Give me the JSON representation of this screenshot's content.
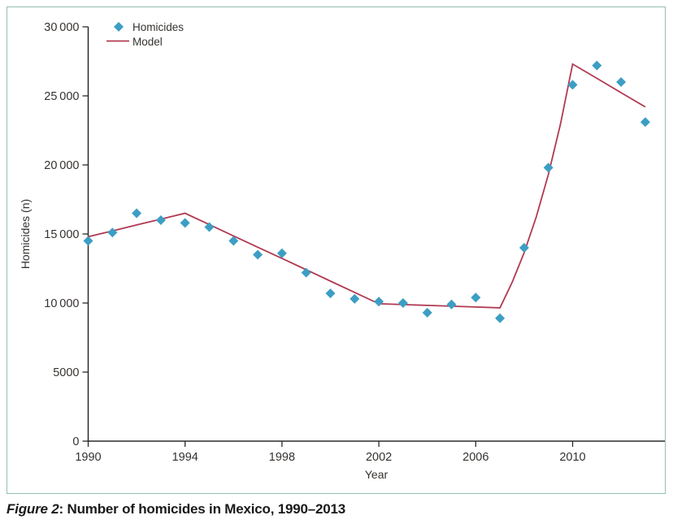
{
  "figure": {
    "caption_prefix": "Figure 2",
    "caption_rest": ": Number of homicides in Mexico, 1990–2013"
  },
  "chart_data": {
    "type": "scatter",
    "title": "",
    "xlabel": "Year",
    "ylabel": "Homicides (n)",
    "xlim": [
      1990,
      2013.8
    ],
    "ylim": [
      0,
      30000
    ],
    "grid": false,
    "legend_position": "top-left-inside",
    "x_ticks": [
      1990,
      1994,
      1998,
      2002,
      2006,
      2010
    ],
    "y_ticks": [
      0,
      5000,
      10000,
      15000,
      20000,
      25000,
      30000
    ],
    "y_tick_labels": [
      "0",
      "5000",
      "10 000",
      "15 000",
      "20 000",
      "25 000",
      "30 000"
    ],
    "legend": [
      {
        "label": "Homicides",
        "marker": "diamond-icon"
      },
      {
        "label": "Model",
        "marker": "line-swatch"
      }
    ],
    "series": [
      {
        "name": "Homicides",
        "type": "scatter",
        "marker": "diamond",
        "x": [
          1990,
          1991,
          1992,
          1993,
          1994,
          1995,
          1996,
          1997,
          1998,
          1999,
          2000,
          2001,
          2002,
          2003,
          2004,
          2005,
          2006,
          2007,
          2008,
          2009,
          2010,
          2011,
          2012,
          2013
        ],
        "y": [
          14500,
          15100,
          16500,
          16000,
          15800,
          15500,
          14500,
          13500,
          13600,
          12200,
          10700,
          10300,
          10100,
          10000,
          9300,
          9900,
          10400,
          8900,
          14000,
          19800,
          25800,
          27200,
          26000,
          23100
        ]
      },
      {
        "name": "Model",
        "type": "line",
        "x": [
          1990,
          1991,
          1992,
          1993,
          1994,
          1995,
          1996,
          1997,
          1998,
          1999,
          2000,
          2001,
          2002,
          2003,
          2004,
          2005,
          2006,
          2007,
          2007.5,
          2008,
          2008.5,
          2009,
          2009.5,
          2010,
          2011,
          2012,
          2013
        ],
        "y": [
          14800,
          15225,
          15650,
          16075,
          16500,
          15680,
          14860,
          14040,
          13230,
          12410,
          11590,
          10770,
          9950,
          9890,
          9830,
          9770,
          9710,
          9650,
          11480,
          13650,
          16240,
          19310,
          22970,
          27300,
          26270,
          25230,
          24200
        ]
      }
    ],
    "model_joinpoints": [
      [
        1990,
        14800
      ],
      [
        1994,
        16500
      ],
      [
        2002,
        9950
      ],
      [
        2007,
        9650
      ],
      [
        2010,
        27300
      ],
      [
        2013,
        24200
      ]
    ],
    "colors": {
      "marker": "#3d9ec4",
      "model_line": "#b03a52",
      "frame": "#93bfae",
      "axis": "#2b2b2b",
      "text": "#35322f"
    }
  }
}
